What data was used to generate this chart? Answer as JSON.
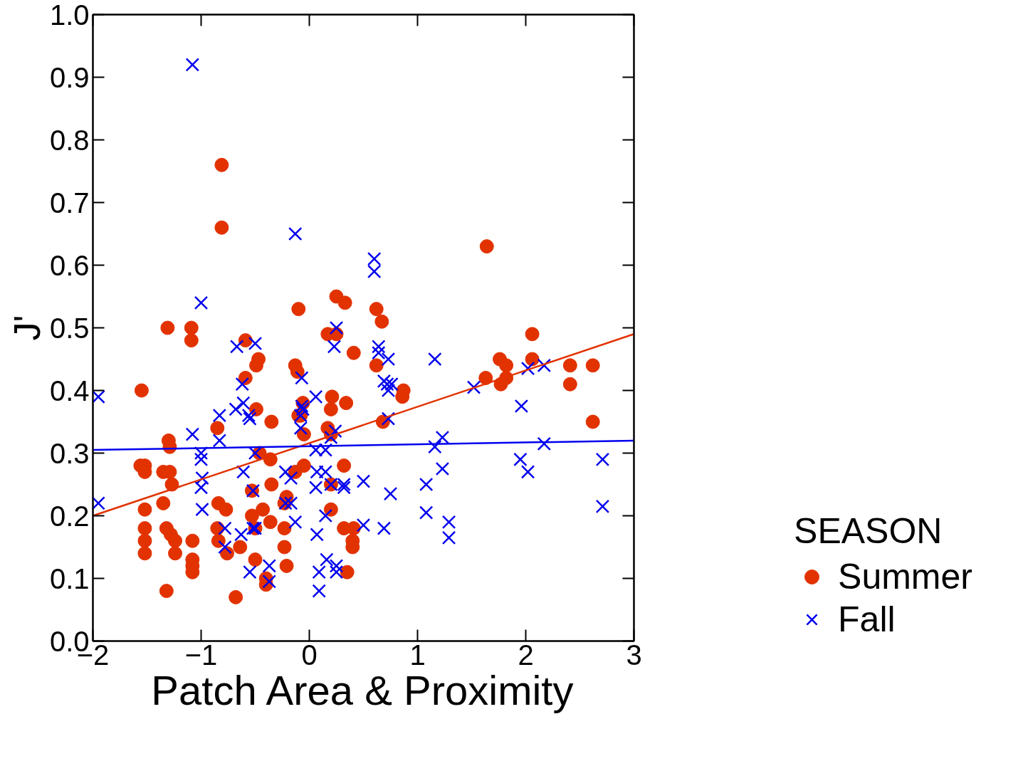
{
  "chart_data": {
    "type": "scatter",
    "xlabel": "Patch Area & Proximity",
    "ylabel": "J'",
    "legend_title": "SEASON",
    "legend": "right",
    "grid": false,
    "xlim": [
      -2,
      3
    ],
    "ylim": [
      0,
      1
    ],
    "xticks": [
      -2,
      -1,
      0,
      1,
      2,
      3
    ],
    "yticks": [
      {
        "value": 0,
        "label": "0.0"
      },
      0.1,
      0.2,
      0.3,
      0.4,
      0.5,
      0.6,
      0.7,
      0.8,
      0.9,
      {
        "value": 1,
        "label": "1.0"
      }
    ],
    "series": [
      {
        "name": "Summer",
        "color": "#e23200",
        "marker": "circle",
        "x": [
          -0.81,
          -0.81,
          1.64,
          -1.31,
          -1.09,
          -1.09,
          -1.55,
          -0.59,
          -0.47,
          -0.49,
          -0.59,
          -0.49,
          -0.85,
          -0.35,
          -1.3,
          -1.29,
          -1.56,
          -1.52,
          -1.52,
          -1.35,
          -1.29,
          -1.27,
          -1.35,
          -1.52,
          -1.32,
          -1.52,
          -1.28,
          -1.52,
          -1.24,
          -1.52,
          -1.24,
          -1.08,
          -1.08,
          -1.08,
          -1.08,
          -1.32,
          -0.68,
          -0.84,
          -0.77,
          -0.85,
          -0.84,
          -0.76,
          -0.64,
          -0.53,
          -0.46,
          -0.36,
          -0.35,
          -0.53,
          -0.43,
          -0.36,
          -0.5,
          -0.5,
          -0.4,
          -0.4,
          -0.23,
          -0.21,
          -0.23,
          -0.23,
          -0.21,
          -0.1,
          -0.13,
          -0.11,
          -0.1,
          -0.08,
          -0.06,
          -0.05,
          -0.05,
          -0.13,
          0.25,
          0.33,
          0.17,
          0.25,
          0.41,
          0.21,
          0.34,
          0.2,
          0.17,
          0.2,
          0.32,
          0.2,
          0.2,
          0.32,
          0.41,
          0.4,
          0.4,
          0.35,
          0.62,
          0.67,
          0.62,
          0.68,
          0.87,
          0.86,
          1.63,
          1.76,
          1.82,
          1.82,
          1.77,
          2.06,
          2.06,
          2.41,
          2.41,
          2.62,
          2.62
        ],
        "values": [
          0.76,
          0.66,
          0.63,
          0.5,
          0.5,
          0.48,
          0.4,
          0.48,
          0.45,
          0.44,
          0.42,
          0.37,
          0.34,
          0.35,
          0.32,
          0.31,
          0.28,
          0.28,
          0.27,
          0.27,
          0.27,
          0.25,
          0.22,
          0.21,
          0.18,
          0.18,
          0.17,
          0.16,
          0.16,
          0.14,
          0.14,
          0.16,
          0.13,
          0.12,
          0.11,
          0.08,
          0.07,
          0.22,
          0.21,
          0.18,
          0.16,
          0.14,
          0.15,
          0.24,
          0.3,
          0.29,
          0.25,
          0.2,
          0.21,
          0.19,
          0.18,
          0.13,
          0.1,
          0.09,
          0.22,
          0.23,
          0.18,
          0.15,
          0.12,
          0.53,
          0.44,
          0.43,
          0.36,
          0.36,
          0.38,
          0.33,
          0.28,
          0.27,
          0.55,
          0.54,
          0.49,
          0.49,
          0.46,
          0.39,
          0.38,
          0.37,
          0.34,
          0.33,
          0.28,
          0.25,
          0.21,
          0.18,
          0.18,
          0.16,
          0.15,
          0.11,
          0.53,
          0.51,
          0.44,
          0.35,
          0.4,
          0.39,
          0.42,
          0.45,
          0.44,
          0.42,
          0.41,
          0.49,
          0.45,
          0.44,
          0.41,
          0.44,
          0.35
        ]
      },
      {
        "name": "Fall",
        "color": "#0000ee",
        "marker": "cross",
        "x": [
          -1.08,
          -0.13,
          0.6,
          0.6,
          -1.0,
          0.25,
          0.23,
          -0.67,
          -0.5,
          0.64,
          0.64,
          0.73,
          -0.07,
          0.06,
          -0.07,
          -0.06,
          -0.08,
          -0.08,
          0.24,
          0.2,
          0.69,
          0.72,
          0.76,
          0.73,
          0.73,
          -0.62,
          -1.95,
          -0.61,
          -0.68,
          -0.56,
          -0.55,
          -0.83,
          -1.08,
          -0.83,
          -1.0,
          -1.0,
          -0.99,
          -1.0,
          -0.99,
          -1.95,
          -0.61,
          -0.52,
          -0.78,
          -0.63,
          -0.78,
          -0.52,
          -0.55,
          -0.5,
          -0.22,
          -0.17,
          -0.22,
          -0.17,
          -0.13,
          0.06,
          0.15,
          0.07,
          0.15,
          0.06,
          0.2,
          0.32,
          0.32,
          0.5,
          0.75,
          0.15,
          0.07,
          0.5,
          0.69,
          0.16,
          0.25,
          0.25,
          0.09,
          0.09,
          -0.37,
          -0.37,
          -0.5,
          1.16,
          1.52,
          2.02,
          2.17,
          1.96,
          1.23,
          1.16,
          2.17,
          1.23,
          1.08,
          1.95,
          2.02,
          2.71,
          1.08,
          1.29,
          1.29,
          2.71
        ],
        "values": [
          0.92,
          0.65,
          0.61,
          0.59,
          0.54,
          0.5,
          0.47,
          0.47,
          0.475,
          0.47,
          0.46,
          0.45,
          0.42,
          0.39,
          0.375,
          0.37,
          0.36,
          0.34,
          0.335,
          0.325,
          0.415,
          0.41,
          0.41,
          0.4,
          0.355,
          0.41,
          0.39,
          0.38,
          0.37,
          0.36,
          0.355,
          0.36,
          0.33,
          0.32,
          0.3,
          0.29,
          0.26,
          0.245,
          0.21,
          0.22,
          0.27,
          0.24,
          0.18,
          0.17,
          0.15,
          0.18,
          0.11,
          0.3,
          0.27,
          0.26,
          0.22,
          0.22,
          0.19,
          0.305,
          0.305,
          0.27,
          0.27,
          0.245,
          0.25,
          0.25,
          0.245,
          0.255,
          0.235,
          0.2,
          0.17,
          0.185,
          0.18,
          0.13,
          0.12,
          0.11,
          0.11,
          0.08,
          0.12,
          0.095,
          0.18,
          0.45,
          0.405,
          0.435,
          0.44,
          0.375,
          0.325,
          0.31,
          0.315,
          0.275,
          0.25,
          0.29,
          0.27,
          0.29,
          0.205,
          0.19,
          0.165,
          0.215
        ]
      },
      {
        "type": "line",
        "color": "#e23200",
        "x": [
          -2,
          3
        ],
        "values": [
          0.2,
          0.49
        ]
      },
      {
        "type": "line",
        "color": "#0000ee",
        "x": [
          -2,
          3
        ],
        "values": [
          0.305,
          0.32
        ]
      }
    ]
  }
}
